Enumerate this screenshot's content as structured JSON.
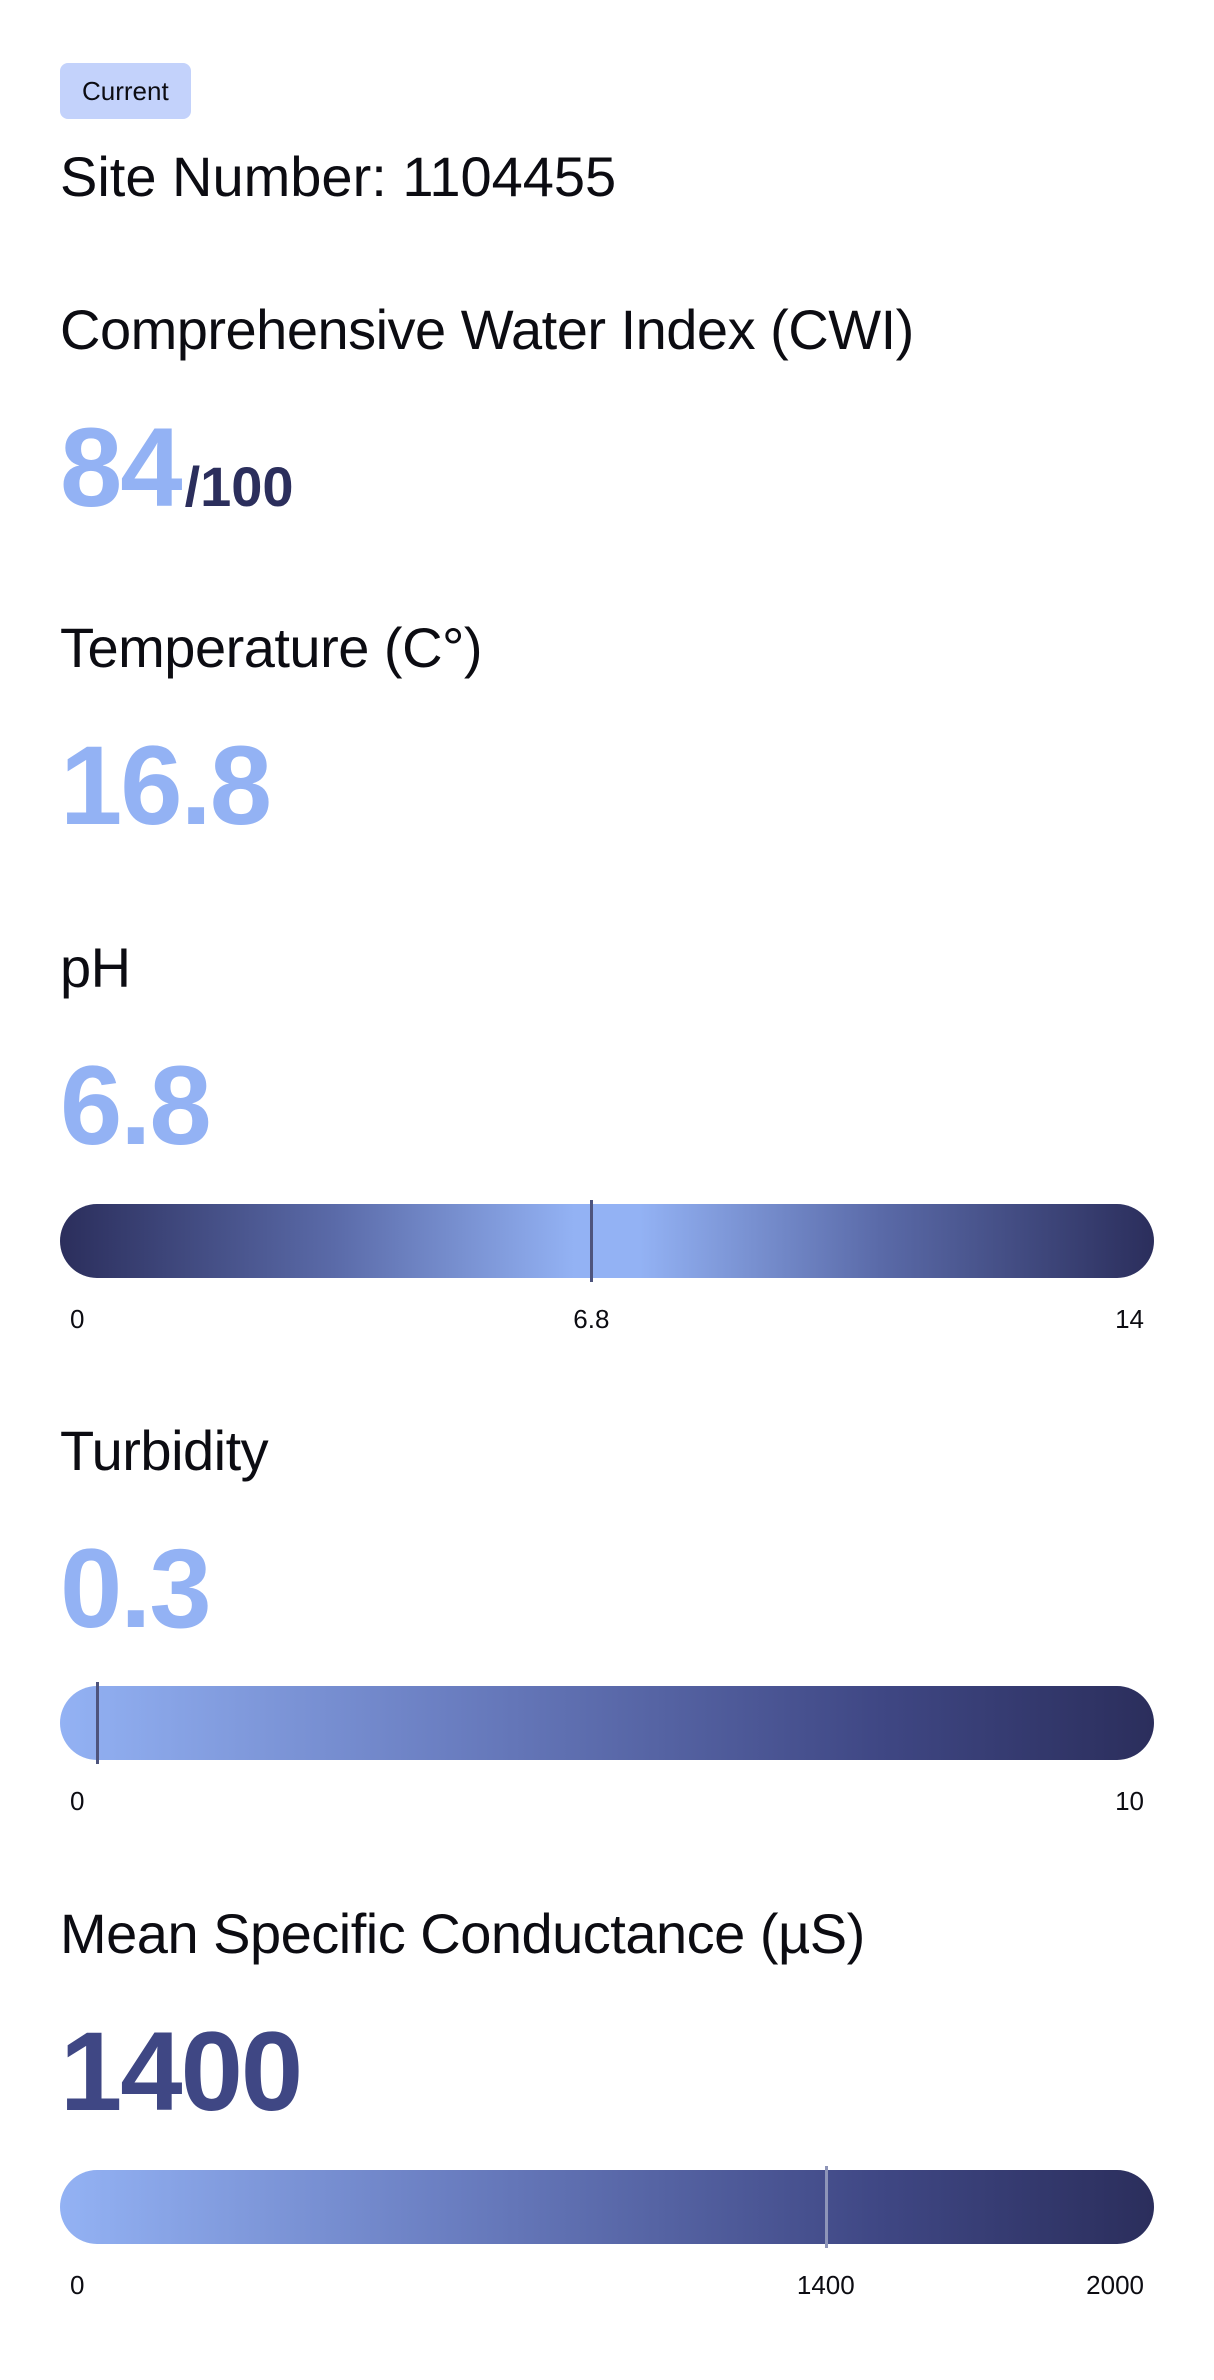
{
  "badge": "Current",
  "site": {
    "label": "Site Number: 1104455"
  },
  "cwi": {
    "title": "Comprehensive Water Index (CWI)",
    "value": "84",
    "outof": "/100"
  },
  "temperature": {
    "title": "Temperature (C°)",
    "value": "16.8"
  },
  "ph": {
    "title": "pH",
    "value": "6.8",
    "scale": {
      "min": "0",
      "mid": "6.8",
      "max": "14"
    },
    "level": 6.8,
    "range": [
      0,
      14
    ]
  },
  "turbidity": {
    "title": "Turbidity",
    "value": "0.3",
    "scale": {
      "min": "0",
      "max": "10"
    },
    "level": 0.3,
    "range": [
      0,
      10
    ]
  },
  "conductance": {
    "title": "Mean Specific Conductance (µS)",
    "value": "1400",
    "scale": {
      "min": "0",
      "mid": "1400",
      "max": "2000"
    },
    "level": 1400,
    "range": [
      0,
      2000
    ]
  },
  "colors": {
    "accent_light": "#93b2f4",
    "accent_dark": "#2b2e5c",
    "badge_bg": "#c3d2fb"
  }
}
